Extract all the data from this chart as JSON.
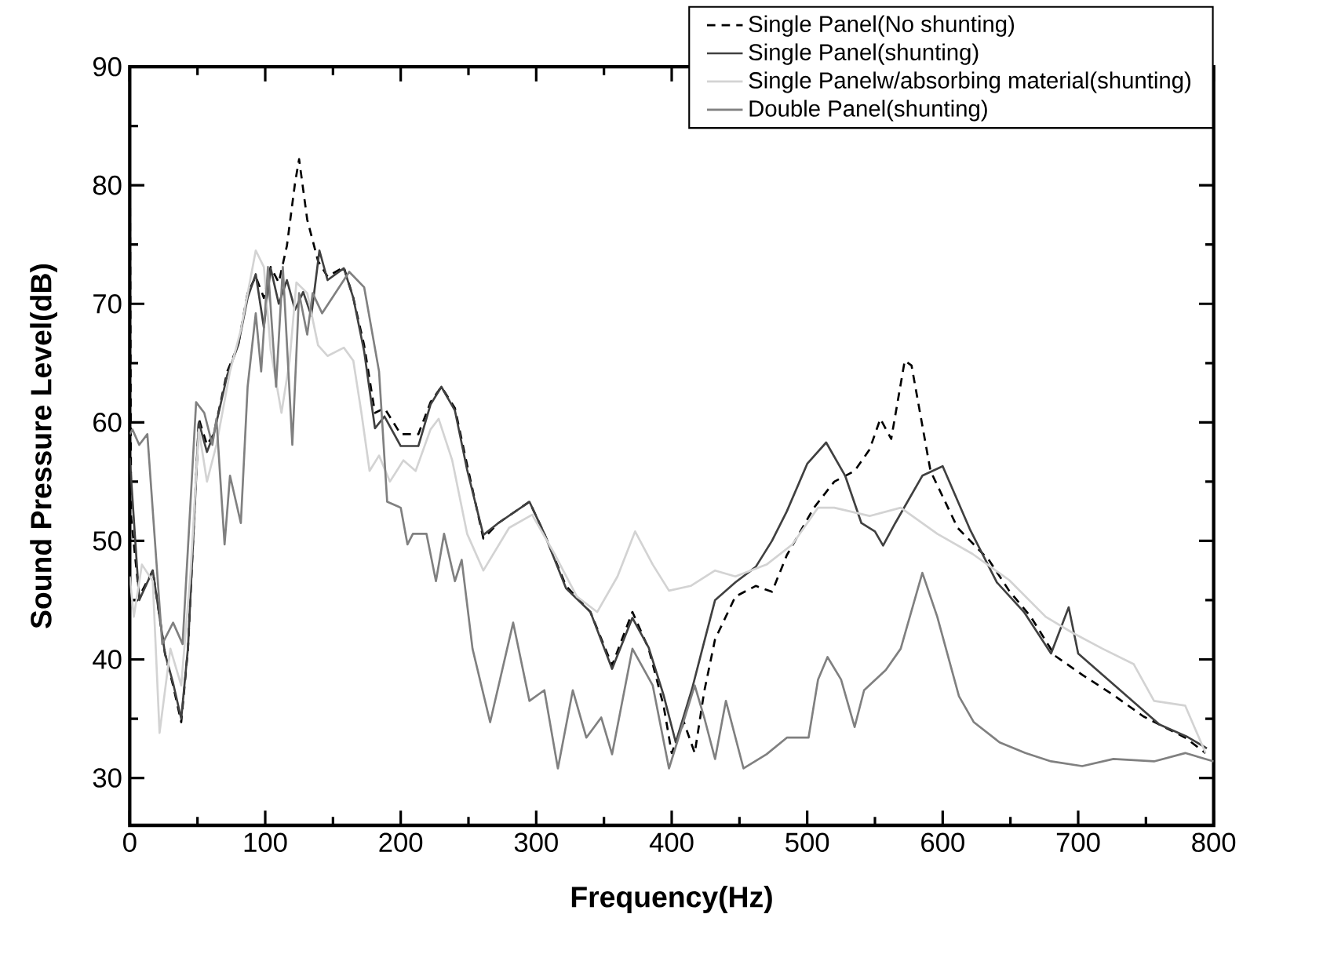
{
  "chart_data": {
    "type": "line",
    "xlabel": "Frequency(Hz)",
    "ylabel": "Sound Pressure Level(dB)",
    "xlim": [
      0,
      800
    ],
    "ylim": [
      26,
      90
    ],
    "xticks": [
      0,
      100,
      200,
      300,
      400,
      500,
      600,
      700,
      800
    ],
    "yticks": [
      30,
      40,
      50,
      60,
      70,
      80,
      90
    ],
    "grid": false,
    "legend": "top right",
    "marker": "none",
    "series": [
      {
        "name": "Single Panel(No shunting)",
        "color": "#000000",
        "line_style": "dashed",
        "x": [
          0,
          1,
          7,
          17,
          26,
          32,
          38,
          43,
          51,
          57,
          62,
          72,
          80,
          87,
          93,
          99,
          104,
          110,
          116,
          122,
          125,
          131,
          139,
          146,
          158,
          165,
          173,
          181,
          188,
          200,
          213,
          222,
          230,
          240,
          249,
          261,
          272,
          295,
          306,
          322,
          340,
          356,
          371,
          383,
          394,
          400,
          409,
          417,
          424,
          432,
          447,
          462,
          474,
          485,
          505,
          520,
          535,
          546,
          554,
          562,
          572,
          577,
          591,
          611,
          634,
          649,
          665,
          683,
          703,
          726,
          748,
          779,
          794
        ],
        "values": [
          85.5,
          52,
          45.3,
          47.5,
          40.5,
          37.8,
          34.7,
          40.9,
          60.3,
          58.1,
          59.0,
          64.3,
          66.5,
          70.9,
          72.3,
          70.5,
          73.1,
          71.8,
          74.9,
          80.2,
          82.2,
          77.1,
          73.6,
          72.3,
          73.1,
          70.5,
          66.5,
          60.8,
          61.2,
          59.0,
          59.0,
          61.7,
          63.0,
          61.2,
          56.4,
          50.2,
          51.5,
          53.3,
          50.6,
          46.2,
          44.0,
          39.5,
          44.0,
          40.9,
          36.1,
          32.1,
          34.7,
          32.1,
          37.3,
          41.7,
          45.3,
          46.2,
          45.7,
          48.8,
          52.8,
          55.0,
          55.9,
          57.7,
          60.3,
          58.6,
          65.2,
          64.8,
          55.9,
          51.1,
          48.4,
          45.8,
          43.6,
          40.3,
          38.7,
          37.0,
          35.2,
          33.4,
          32.1
        ]
      },
      {
        "name": "Single Panel(shunting)",
        "color": "#404040",
        "line_style": "solid",
        "x": [
          0,
          7,
          17,
          26,
          32,
          38,
          43,
          51,
          57,
          62,
          72,
          80,
          87,
          93,
          99,
          104,
          110,
          116,
          122,
          128,
          134,
          140,
          146,
          158,
          165,
          173,
          181,
          188,
          200,
          213,
          222,
          230,
          240,
          249,
          261,
          272,
          295,
          306,
          322,
          340,
          356,
          371,
          383,
          394,
          403,
          415,
          424,
          432,
          447,
          462,
          474,
          485,
          500,
          514,
          528,
          540,
          550,
          556,
          565,
          585,
          600,
          620,
          640,
          660,
          680,
          693,
          700,
          720,
          740,
          760,
          780,
          795
        ],
        "values": [
          57,
          45,
          47.5,
          40.5,
          38,
          35,
          41,
          60,
          57.5,
          59,
          64,
          66.5,
          70.5,
          72.5,
          68,
          73,
          70,
          72,
          69.5,
          71,
          69,
          74.5,
          72,
          73,
          70.5,
          66,
          59.5,
          60.5,
          58,
          58,
          61.5,
          63,
          61,
          56,
          50.5,
          51.5,
          53.3,
          50.6,
          46,
          44,
          39.2,
          43.5,
          41,
          37,
          33,
          37.5,
          41.5,
          45,
          46.5,
          47.8,
          50,
          52.5,
          56.5,
          58.3,
          55.5,
          51.5,
          50.8,
          49.6,
          51.5,
          55.5,
          56.3,
          51,
          46.5,
          44,
          40.5,
          44.4,
          40.5,
          38.5,
          36.5,
          34.5,
          33.5,
          32.5
        ]
      },
      {
        "name": "Single Panelw/absorbing material(shunting)",
        "color": "#d3d3d3",
        "line_style": "solid",
        "x": [
          0,
          3,
          9,
          17,
          22,
          30,
          38,
          45,
          51,
          57,
          64,
          74,
          82,
          93,
          99,
          104,
          112,
          118,
          123,
          131,
          139,
          146,
          158,
          165,
          171,
          177,
          184,
          192,
          202,
          211,
          222,
          228,
          238,
          249,
          261,
          280,
          297,
          314,
          330,
          345,
          360,
          373,
          386,
          398,
          414,
          432,
          447,
          470,
          489,
          508,
          520,
          546,
          569,
          596,
          622,
          649,
          676,
          695,
          718,
          741,
          756,
          779,
          794
        ],
        "values": [
          47,
          43.6,
          48,
          46.6,
          33.8,
          40.9,
          37.8,
          47.5,
          59.4,
          55.0,
          58.1,
          64.3,
          67.8,
          74.5,
          73.1,
          66.1,
          60.8,
          65.2,
          71.8,
          70.9,
          66.5,
          65.6,
          66.3,
          65.2,
          60.8,
          55.9,
          57.2,
          55.0,
          56.8,
          55.9,
          59.4,
          60.3,
          56.8,
          50.6,
          47.5,
          51.1,
          52.2,
          48.8,
          45.3,
          44.0,
          47.0,
          50.8,
          48.0,
          45.8,
          46.2,
          47.5,
          47.0,
          48.0,
          49.7,
          52.8,
          52.8,
          52.1,
          52.8,
          50.6,
          48.9,
          46.7,
          43.6,
          42.3,
          40.9,
          39.6,
          36.5,
          36.1,
          32.1
        ]
      },
      {
        "name": "Double Panel(shunting)",
        "color": "#808080",
        "line_style": "solid",
        "x": [
          0,
          2,
          7,
          13,
          24,
          32,
          39,
          49,
          55,
          61,
          64,
          70,
          74,
          82,
          87,
          93,
          97,
          102,
          108,
          113,
          120,
          125,
          131,
          135,
          142,
          162,
          173,
          184,
          190,
          200,
          205,
          209,
          219,
          226,
          232,
          240,
          245,
          253,
          266,
          283,
          295,
          306,
          316,
          327,
          337,
          348,
          356,
          371,
          386,
          398,
          417,
          424,
          432,
          440,
          453,
          470,
          485,
          501,
          508,
          515,
          525,
          535,
          542,
          558,
          569,
          585,
          596,
          612,
          623,
          642,
          661,
          680,
          703,
          726,
          756,
          779,
          800
        ],
        "values": [
          59,
          59.4,
          58.1,
          59.0,
          41.3,
          43.1,
          41.3,
          61.7,
          60.8,
          58.1,
          60.3,
          49.7,
          55.5,
          51.5,
          63.0,
          69.2,
          64.3,
          73.1,
          63.0,
          73.1,
          58.1,
          70.9,
          67.4,
          70.9,
          69.2,
          72.7,
          71.4,
          64.3,
          53.3,
          52.8,
          49.7,
          50.6,
          50.6,
          46.6,
          50.6,
          46.6,
          48.4,
          40.9,
          34.7,
          43.1,
          36.5,
          37.4,
          30.8,
          37.4,
          33.4,
          35.1,
          32.0,
          40.9,
          37.8,
          30.8,
          37.8,
          35.1,
          31.6,
          36.5,
          30.8,
          32.0,
          33.4,
          33.4,
          38.3,
          40.2,
          38.3,
          34.3,
          37.4,
          39.1,
          40.9,
          47.3,
          43.6,
          36.9,
          34.7,
          33.0,
          32.1,
          31.4,
          31.0,
          31.6,
          31.4,
          32.1,
          31.4
        ]
      }
    ]
  }
}
